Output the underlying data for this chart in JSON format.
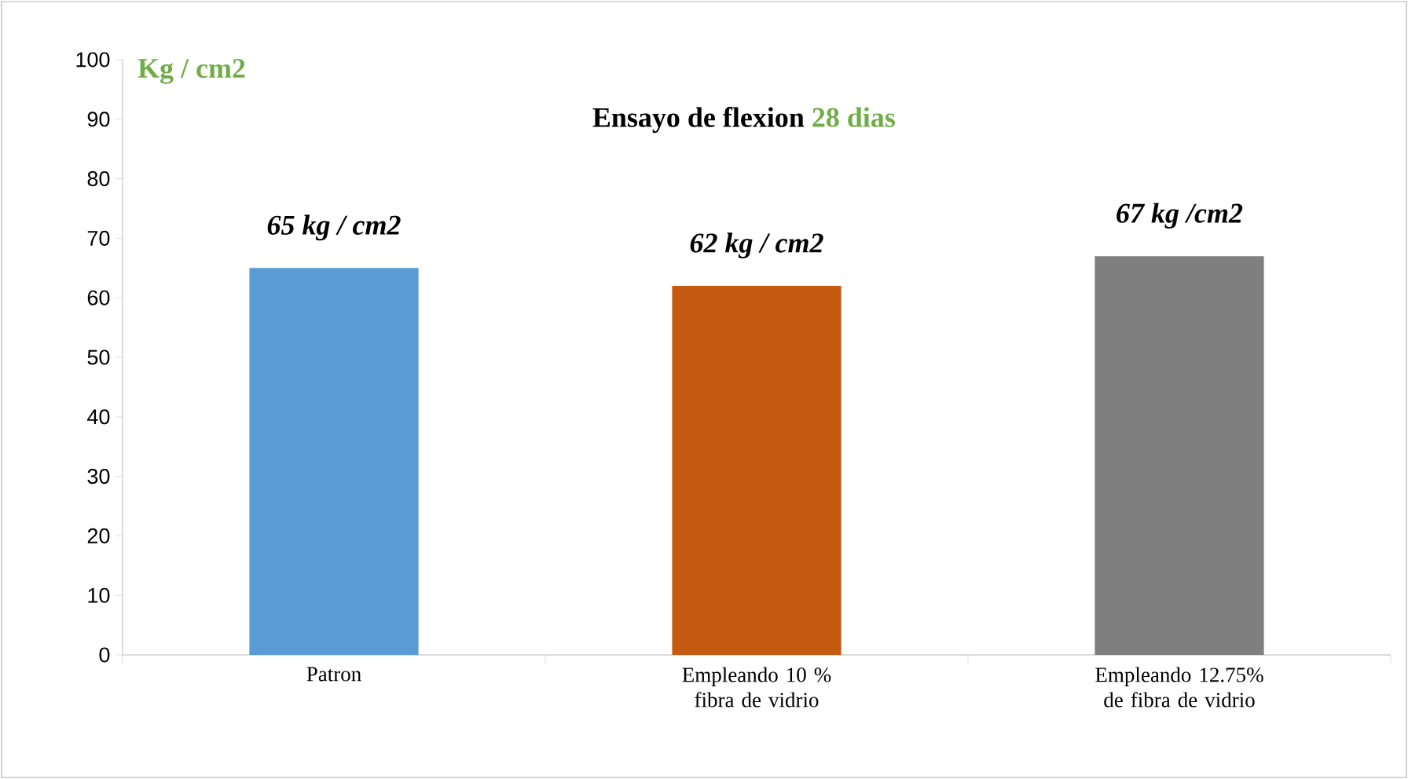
{
  "chart_data": {
    "type": "bar",
    "title": "Ensayo de flexion",
    "subtitle": "28 dias",
    "ylabel": "Kg / cm2",
    "categories": [
      "Patron",
      "Empleando 10 % fibra de vidrio",
      "Empleando 12.75%  de fibra de vidrio"
    ],
    "values": [
      65,
      62,
      67
    ],
    "colors": [
      "#5b9bd5",
      "#c55a11",
      "#7f7f7f"
    ],
    "value_labels": [
      "65 kg / cm2",
      "62 kg / cm2",
      "67 kg /cm2"
    ],
    "ylim": [
      0,
      100
    ],
    "yticks": [
      0,
      10,
      20,
      30,
      40,
      50,
      60,
      70,
      80,
      90,
      100
    ],
    "grid": false
  }
}
